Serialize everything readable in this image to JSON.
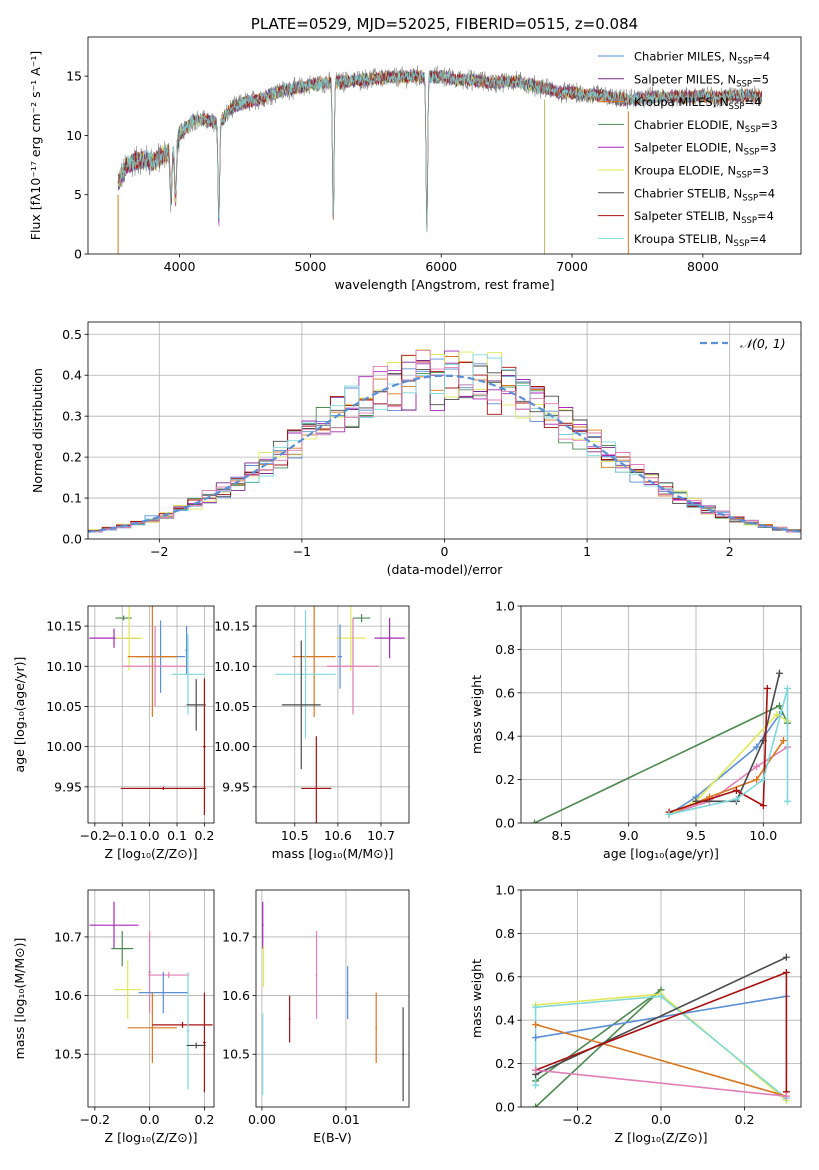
{
  "figure_title": "PLATE=0529, MJD=52025, FIBERID=0515, z=0.084",
  "colors": {
    "chabrier_miles": "#5b8fd6",
    "salpeter_miles": "#7a2a8a",
    "kroupa_miles": "#d9771f",
    "chabrier_elodie": "#4e8a52",
    "salpeter_elodie": "#a52ab8",
    "kroupa_elodie": "#e0e85a",
    "chabrier_stelib": "#4a4a4a",
    "salpeter_stelib": "#a81010",
    "kroupa_stelib": "#7fd8dc",
    "gaussian": "#5b8fd6",
    "pink": "#e27fb8"
  },
  "chart_data": [
    {
      "id": "spectrum",
      "type": "line",
      "title": "PLATE=0529, MJD=52025, FIBERID=0515, z=0.084",
      "xlabel": "wavelength [Angstrom, rest frame]",
      "ylabel": "Flux [fλ10⁻¹⁷ erg cm⁻² s⁻¹ A⁻¹]",
      "xlim": [
        3300,
        8750
      ],
      "ylim": [
        0,
        18.3
      ],
      "xticks": [
        4000,
        5000,
        6000,
        7000,
        8000
      ],
      "yticks": [
        0,
        5,
        10,
        15
      ],
      "legend_position": "top-right",
      "legend": [
        {
          "label": "Chabrier MILES, N",
          "sub": "SSP",
          "suffix": "=4",
          "color": "#5b8fd6"
        },
        {
          "label": "Salpeter MILES, N",
          "sub": "SSP",
          "suffix": "=5",
          "color": "#7a2a8a"
        },
        {
          "label": "Kroupa MILES, N",
          "sub": "SSP",
          "suffix": "=4",
          "color": "#d9771f"
        },
        {
          "label": "Chabrier ELODIE, N",
          "sub": "SSP",
          "suffix": "=3",
          "color": "#4e8a52"
        },
        {
          "label": "Salpeter ELODIE, N",
          "sub": "SSP",
          "suffix": "=3",
          "color": "#a52ab8"
        },
        {
          "label": "Kroupa ELODIE, N",
          "sub": "SSP",
          "suffix": "=3",
          "color": "#e0e85a"
        },
        {
          "label": "Chabrier STELIB, N",
          "sub": "SSP",
          "suffix": "=4",
          "color": "#4a4a4a"
        },
        {
          "label": "Salpeter STELIB, N",
          "sub": "SSP",
          "suffix": "=4",
          "color": "#a81010"
        },
        {
          "label": "Kroupa STELIB, N",
          "sub": "SSP",
          "suffix": "=4",
          "color": "#7fd8dc"
        }
      ],
      "continuum": [
        [
          3530,
          6.0
        ],
        [
          3600,
          7.5
        ],
        [
          3700,
          8.0
        ],
        [
          3800,
          7.8
        ],
        [
          3900,
          8.5
        ],
        [
          3950,
          8.5
        ],
        [
          4000,
          10.0
        ],
        [
          4100,
          11.3
        ],
        [
          4200,
          11.3
        ],
        [
          4300,
          11.0
        ],
        [
          4400,
          12.3
        ],
        [
          4500,
          12.8
        ],
        [
          4600,
          13.0
        ],
        [
          4700,
          13.5
        ],
        [
          4800,
          13.8
        ],
        [
          4900,
          14.0
        ],
        [
          5000,
          14.3
        ],
        [
          5100,
          14.4
        ],
        [
          5200,
          14.5
        ],
        [
          5300,
          14.6
        ],
        [
          5400,
          14.7
        ],
        [
          5500,
          14.8
        ],
        [
          5600,
          14.9
        ],
        [
          5700,
          14.9
        ],
        [
          5800,
          15.0
        ],
        [
          5900,
          14.9
        ],
        [
          6000,
          15.0
        ],
        [
          6100,
          14.7
        ],
        [
          6200,
          14.7
        ],
        [
          6300,
          14.6
        ],
        [
          6400,
          14.4
        ],
        [
          6500,
          14.6
        ],
        [
          6600,
          14.5
        ],
        [
          6700,
          14.2
        ],
        [
          6800,
          14.0
        ],
        [
          6900,
          13.6
        ],
        [
          7000,
          13.6
        ],
        [
          7100,
          13.4
        ],
        [
          7200,
          13.4
        ],
        [
          7300,
          13.2
        ],
        [
          7400,
          13.0
        ],
        [
          7500,
          13.1
        ],
        [
          7600,
          13.2
        ],
        [
          7700,
          13.2
        ],
        [
          7800,
          13.3
        ],
        [
          7900,
          13.2
        ],
        [
          8000,
          13.3
        ],
        [
          8100,
          13.2
        ],
        [
          8200,
          13.3
        ],
        [
          8300,
          13.4
        ],
        [
          8400,
          13.3
        ],
        [
          8450,
          13.2
        ]
      ],
      "dips": [
        [
          3934,
          4.0
        ],
        [
          3969,
          4.5
        ],
        [
          4300,
          8.2
        ],
        [
          5175,
          11.5
        ],
        [
          5890,
          12.5
        ]
      ],
      "drops": [
        {
          "x": 3530,
          "color": "#d9771f"
        },
        {
          "x": 6790,
          "color": "#c9b75a"
        },
        {
          "x": 7430,
          "color": "#d9771f"
        }
      ]
    },
    {
      "id": "residuals",
      "type": "step",
      "xlabel": "(data-model)/error",
      "ylabel": "Normed distribution",
      "xlim": [
        -2.5,
        2.5
      ],
      "ylim": [
        0,
        0.53
      ],
      "xticks": [
        -2,
        -1,
        0,
        1,
        2
      ],
      "yticks": [
        0.0,
        0.1,
        0.2,
        0.3,
        0.4,
        0.5
      ],
      "legend_position": "top-right",
      "legend": [
        {
          "label": "𝒩(0, 1)",
          "color": "#5b8fd6",
          "dashed": true
        }
      ],
      "bin_width": 0.1,
      "gaussian": {
        "mean": 0,
        "sigma": 1
      }
    },
    {
      "id": "age-vs-z",
      "type": "errorbar",
      "xlabel": "Z [log₁₀(Z/Z⊙)]",
      "ylabel": "age  [log₁₀(age/yr)]",
      "xlim": [
        -0.225,
        0.235
      ],
      "ylim": [
        9.905,
        10.175
      ],
      "xticks": [
        -0.2,
        -0.1,
        0.0,
        0.1,
        0.2
      ],
      "yticks": [
        9.95,
        10.0,
        10.05,
        10.1,
        10.15
      ],
      "points": [
        {
          "x": -0.095,
          "y": 10.16,
          "xerr": 0.03,
          "yerr": 0.003,
          "color": "#4e8a52"
        },
        {
          "x": -0.13,
          "y": 10.135,
          "xerr": 0.09,
          "yerr": 0.012,
          "color": "#a52ab8"
        },
        {
          "x": -0.075,
          "y": 10.135,
          "xerr": 0.05,
          "yerr": 0.04,
          "color": "#e0e85a"
        },
        {
          "x": 0.04,
          "y": 10.112,
          "xerr": 0.09,
          "yerr": 0.045,
          "color": "#5b8fd6"
        },
        {
          "x": 0.01,
          "y": 10.112,
          "xerr": 0.09,
          "yerr": 0.075,
          "color": "#d9771f"
        },
        {
          "x": 0.02,
          "y": 10.1,
          "xerr": 0.12,
          "yerr": 0.05,
          "color": "#e27fb8"
        },
        {
          "x": 0.135,
          "y": 10.12,
          "xerr": 0.005,
          "yerr": 0.03,
          "color": "#5b8fd6"
        },
        {
          "x": 0.14,
          "y": 10.09,
          "xerr": 0.06,
          "yerr": 0.05,
          "color": "#7fd8dc"
        },
        {
          "x": 0.17,
          "y": 10.052,
          "xerr": 0.035,
          "yerr": 0.032,
          "color": "#4a4a4a"
        },
        {
          "x": 0.2,
          "y": 10.0,
          "xerr": 0.005,
          "yerr": 0.085,
          "color": "#a81010"
        },
        {
          "x": 0.05,
          "y": 9.948,
          "xerr": 0.155,
          "yerr": 0.002,
          "color": "#a81010"
        }
      ]
    },
    {
      "id": "age-vs-mass",
      "type": "errorbar",
      "xlabel": "mass [log₁₀(M/M⊙)]",
      "ylabel": "",
      "xlim": [
        10.41,
        10.765
      ],
      "ylim": [
        9.905,
        10.175
      ],
      "xticks": [
        10.5,
        10.6,
        10.7
      ],
      "yticks": [
        9.95,
        10.0,
        10.05,
        10.1,
        10.15
      ],
      "points": [
        {
          "x": 10.655,
          "y": 10.16,
          "xerr": 0.02,
          "yerr": 0.005,
          "color": "#4e8a52"
        },
        {
          "x": 10.72,
          "y": 10.135,
          "xerr": 0.035,
          "yerr": 0.025,
          "color": "#a52ab8"
        },
        {
          "x": 10.63,
          "y": 10.135,
          "xerr": 0.035,
          "yerr": 0.04,
          "color": "#e0e85a"
        },
        {
          "x": 10.545,
          "y": 10.112,
          "xerr": 0.05,
          "yerr": 0.075,
          "color": "#d9771f"
        },
        {
          "x": 10.605,
          "y": 10.112,
          "xerr": 0.005,
          "yerr": 0.04,
          "color": "#5b8fd6"
        },
        {
          "x": 10.635,
          "y": 10.1,
          "xerr": 0.06,
          "yerr": 0.06,
          "color": "#e27fb8"
        },
        {
          "x": 10.525,
          "y": 10.09,
          "xerr": 0.07,
          "yerr": 0.08,
          "color": "#7fd8dc"
        },
        {
          "x": 10.515,
          "y": 10.052,
          "xerr": 0.045,
          "yerr": 0.08,
          "color": "#4a4a4a"
        },
        {
          "x": 10.55,
          "y": 9.948,
          "xerr": 0.035,
          "yerr": 0.065,
          "color": "#a81010"
        }
      ]
    },
    {
      "id": "weight-vs-age",
      "type": "line",
      "xlabel": "age  [log₁₀(age/yr)]",
      "ylabel": "mass weight",
      "xlim": [
        8.2,
        10.28
      ],
      "ylim": [
        0,
        1.0
      ],
      "xticks": [
        8.5,
        9.0,
        9.5,
        10.0
      ],
      "yticks": [
        0.0,
        0.2,
        0.4,
        0.6,
        0.8,
        1.0
      ],
      "series": [
        {
          "color": "#4e8a52",
          "x": [
            8.3,
            10.12,
            10.18
          ],
          "y": [
            0.0,
            0.54,
            0.46
          ]
        },
        {
          "color": "#e27fb8",
          "x": [
            9.3,
            9.6,
            9.95,
            10.18
          ],
          "y": [
            0.04,
            0.1,
            0.26,
            0.35
          ]
        },
        {
          "color": "#d9771f",
          "x": [
            9.3,
            9.6,
            9.95,
            10.15
          ],
          "y": [
            0.04,
            0.12,
            0.2,
            0.38
          ]
        },
        {
          "color": "#5b8fd6",
          "x": [
            9.3,
            9.5,
            9.95,
            10.12
          ],
          "y": [
            0.04,
            0.12,
            0.35,
            0.5
          ]
        },
        {
          "color": "#e0e85a",
          "x": [
            9.3,
            9.5,
            10.1,
            10.18
          ],
          "y": [
            0.04,
            0.1,
            0.5,
            0.47
          ]
        },
        {
          "color": "#4a4a4a",
          "x": [
            9.5,
            9.8,
            10.0,
            10.12
          ],
          "y": [
            0.1,
            0.1,
            0.38,
            0.69
          ]
        },
        {
          "color": "#a81010",
          "x": [
            9.3,
            9.8,
            10.0,
            10.03
          ],
          "y": [
            0.05,
            0.15,
            0.08,
            0.62
          ]
        },
        {
          "color": "#7fd8dc",
          "x": [
            9.3,
            9.8,
            10.0,
            10.18,
            10.18
          ],
          "y": [
            0.04,
            0.11,
            0.2,
            0.62,
            0.1
          ]
        }
      ]
    },
    {
      "id": "mass-vs-z",
      "type": "errorbar",
      "xlabel": "Z [log₁₀(Z/Z⊙)]",
      "ylabel": "mass [log₁₀(M/M⊙)]",
      "xlim": [
        -0.225,
        0.235
      ],
      "ylim": [
        10.41,
        10.78
      ],
      "xticks": [
        -0.2,
        0.0,
        0.2
      ],
      "yticks": [
        10.5,
        10.6,
        10.7
      ],
      "points": [
        {
          "x": -0.13,
          "y": 10.72,
          "xerr": 0.09,
          "yerr": 0.04,
          "color": "#a52ab8"
        },
        {
          "x": -0.1,
          "y": 10.68,
          "xerr": 0.04,
          "yerr": 0.03,
          "color": "#4e8a52"
        },
        {
          "x": -0.08,
          "y": 10.61,
          "xerr": 0.05,
          "yerr": 0.05,
          "color": "#e0e85a"
        },
        {
          "x": 0.07,
          "y": 10.635,
          "xerr": 0.075,
          "yerr": 0.005,
          "color": "#e27fb8"
        },
        {
          "x": 0.0,
          "y": 10.64,
          "xerr": 0.005,
          "yerr": 0.07,
          "color": "#e27fb8"
        },
        {
          "x": 0.05,
          "y": 10.605,
          "xerr": 0.09,
          "yerr": 0.035,
          "color": "#5b8fd6"
        },
        {
          "x": 0.01,
          "y": 10.545,
          "xerr": 0.09,
          "yerr": 0.06,
          "color": "#d9771f"
        },
        {
          "x": 0.12,
          "y": 10.55,
          "xerr": 0.11,
          "yerr": 0.005,
          "color": "#a81010"
        },
        {
          "x": 0.14,
          "y": 10.54,
          "xerr": 0.005,
          "yerr": 0.1,
          "color": "#7fd8dc"
        },
        {
          "x": 0.17,
          "y": 10.515,
          "xerr": 0.035,
          "yerr": 0.005,
          "color": "#4a4a4a"
        },
        {
          "x": 0.2,
          "y": 10.52,
          "xerr": 0.005,
          "yerr": 0.085,
          "color": "#a81010"
        }
      ]
    },
    {
      "id": "mass-vs-ebv",
      "type": "errorbar",
      "xlabel": "E(B-V)",
      "ylabel": "",
      "xlim": [
        -0.0007,
        0.0175
      ],
      "ylim": [
        10.41,
        10.78
      ],
      "xticks": [
        0.0,
        0.01
      ],
      "yticks": [
        10.5,
        10.6,
        10.7
      ],
      "points": [
        {
          "x": 0.0001,
          "y": 10.72,
          "xerr": 0.0001,
          "yerr": 0.04,
          "color": "#a52ab8"
        },
        {
          "x": 0.0002,
          "y": 10.65,
          "xerr": 0.0001,
          "yerr": 0.035,
          "color": "#e0e85a"
        },
        {
          "x": 0.0001,
          "y": 10.5,
          "xerr": 0.0001,
          "yerr": 0.07,
          "color": "#7fd8dc"
        },
        {
          "x": 0.0033,
          "y": 10.56,
          "xerr": 0.0001,
          "yerr": 0.04,
          "color": "#a81010"
        },
        {
          "x": 0.0065,
          "y": 10.635,
          "xerr": 0.0001,
          "yerr": 0.075,
          "color": "#e27fb8"
        },
        {
          "x": 0.0102,
          "y": 10.605,
          "xerr": 0.0001,
          "yerr": 0.045,
          "color": "#5b8fd6"
        },
        {
          "x": 0.0136,
          "y": 10.545,
          "xerr": 0.0001,
          "yerr": 0.06,
          "color": "#d9771f"
        },
        {
          "x": 0.0168,
          "y": 10.5,
          "xerr": 0.0001,
          "yerr": 0.08,
          "color": "#4a4a4a"
        }
      ]
    },
    {
      "id": "weight-vs-z",
      "type": "line",
      "xlabel": "Z [log₁₀(Z/Z⊙)]",
      "ylabel": "mass weight",
      "xlim": [
        -0.335,
        0.335
      ],
      "ylim": [
        0,
        1.0
      ],
      "xticks": [
        -0.2,
        0.0,
        0.2
      ],
      "yticks": [
        0.0,
        0.2,
        0.4,
        0.6,
        0.8,
        1.0
      ],
      "series": [
        {
          "color": "#4e8a52",
          "x": [
            -0.3,
            0.0,
            -0.3
          ],
          "y": [
            0.0,
            0.54,
            0.12
          ]
        },
        {
          "color": "#e0e85a",
          "x": [
            -0.3,
            0.0,
            0.3
          ],
          "y": [
            0.47,
            0.52,
            0.03
          ]
        },
        {
          "color": "#7fd8dc",
          "x": [
            -0.3,
            -0.3,
            0.0,
            0.3
          ],
          "y": [
            0.1,
            0.46,
            0.51,
            0.04
          ]
        },
        {
          "color": "#5b8fd6",
          "x": [
            -0.3,
            0.3
          ],
          "y": [
            0.32,
            0.51
          ]
        },
        {
          "color": "#d9771f",
          "x": [
            -0.3,
            0.3
          ],
          "y": [
            0.38,
            0.05
          ]
        },
        {
          "color": "#4a4a4a",
          "x": [
            -0.3,
            0.3
          ],
          "y": [
            0.15,
            0.69
          ]
        },
        {
          "color": "#a81010",
          "x": [
            -0.3,
            0.3,
            0.3
          ],
          "y": [
            0.17,
            0.62,
            0.07
          ]
        },
        {
          "color": "#e27fb8",
          "x": [
            -0.3,
            0.3
          ],
          "y": [
            0.17,
            0.05
          ]
        }
      ]
    }
  ]
}
